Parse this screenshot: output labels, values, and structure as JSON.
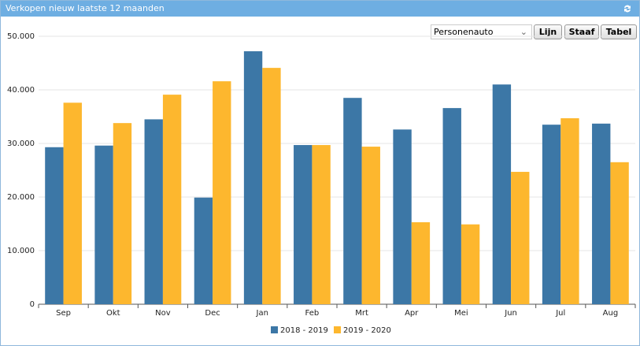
{
  "header": {
    "title": "Verkopen nieuw laatste 12 maanden"
  },
  "controls": {
    "dropdown": "Personenauto",
    "buttons": [
      "Lijn",
      "Staaf",
      "Tabel"
    ]
  },
  "chart_data": {
    "type": "bar",
    "categories": [
      "Sep",
      "Okt",
      "Nov",
      "Dec",
      "Jan",
      "Feb",
      "Mrt",
      "Apr",
      "Mei",
      "Jun",
      "Jul",
      "Aug"
    ],
    "series": [
      {
        "name": "2018 - 2019",
        "color": "#3c77a6",
        "values": [
          29300,
          29600,
          34500,
          19900,
          47200,
          29700,
          38500,
          32600,
          36600,
          41000,
          33500,
          33700
        ]
      },
      {
        "name": "2019 - 2020",
        "color": "#fdb72e",
        "values": [
          37600,
          33800,
          39100,
          41600,
          44100,
          29700,
          29400,
          15300,
          14900,
          24700,
          34700,
          26500
        ]
      }
    ],
    "ylim": [
      0,
      50000
    ],
    "yticks": [
      0,
      {
        "value": 10000,
        "label": "10.000"
      },
      {
        "value": 20000,
        "label": "20.000"
      },
      {
        "value": 30000,
        "label": "30.000"
      },
      {
        "value": 40000,
        "label": "40.000"
      },
      {
        "value": 50000,
        "label": "50.000"
      }
    ],
    "grid": true
  }
}
